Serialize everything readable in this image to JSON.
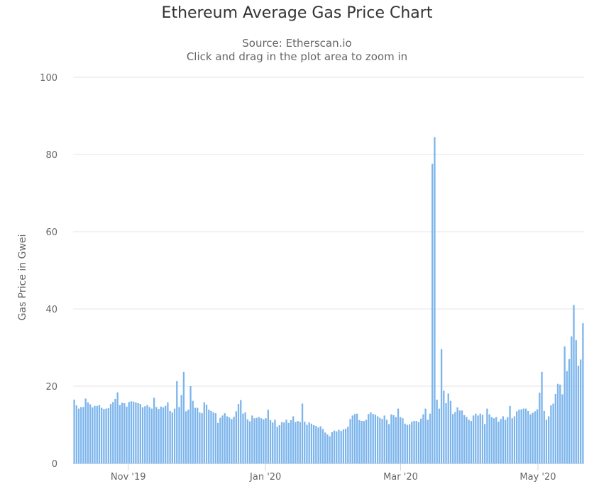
{
  "colors": {
    "bar": "#7cb5ec",
    "grid": "#e6e6e6",
    "axis": "#ccd6eb",
    "text": "#666666",
    "title": "#333333"
  },
  "chart_data": {
    "type": "bar",
    "title": "Ethereum Average Gas Price Chart",
    "subtitle": [
      "Source: Etherscan.io",
      "Click and drag in the plot area to zoom in"
    ],
    "ylabel": "Gas Price in Gwei",
    "xlabel": "",
    "ylim": [
      0,
      100
    ],
    "yticks": [
      0,
      20,
      40,
      60,
      80,
      100
    ],
    "grid": true,
    "legend": "none",
    "x_start": "2019-10-08",
    "x_end": "2020-05-21",
    "xticks": [
      {
        "label": "Nov '19",
        "date": "2019-11-01"
      },
      {
        "label": "Jan '20",
        "date": "2020-01-01"
      },
      {
        "label": "Mar '20",
        "date": "2020-03-01"
      },
      {
        "label": "May '20",
        "date": "2020-05-01"
      }
    ],
    "series": [
      {
        "values": [
          16.5,
          15.0,
          14.2,
          14.6,
          14.6,
          16.8,
          15.8,
          15.3,
          14.5,
          14.9,
          14.9,
          15.1,
          14.4,
          14.1,
          14.2,
          14.3,
          15.4,
          15.9,
          16.7,
          18.4,
          15.1,
          15.7,
          15.6,
          14.7,
          15.9,
          16.1,
          16.0,
          15.8,
          15.6,
          15.4,
          14.5,
          14.8,
          15.1,
          14.6,
          14.2,
          17.0,
          14.6,
          14.1,
          14.7,
          14.5,
          14.9,
          15.8,
          13.6,
          13.2,
          14.2,
          21.3,
          14.6,
          17.7,
          23.7,
          13.5,
          13.9,
          20.0,
          16.2,
          14.4,
          14.4,
          13.2,
          13.0,
          15.8,
          15.2,
          13.9,
          13.6,
          13.2,
          13.0,
          10.5,
          11.8,
          12.4,
          13.0,
          12.2,
          11.9,
          11.5,
          12.1,
          13.5,
          15.4,
          16.4,
          12.9,
          13.2,
          11.4,
          10.9,
          12.4,
          11.7,
          11.8,
          12.0,
          11.7,
          11.4,
          11.7,
          13.9,
          11.2,
          10.6,
          11.3,
          9.5,
          9.9,
          10.7,
          10.6,
          11.3,
          10.5,
          11.2,
          12.2,
          10.7,
          11.0,
          10.7,
          15.5,
          10.8,
          10.0,
          10.6,
          10.3,
          9.9,
          9.7,
          9.3,
          9.6,
          8.9,
          8.0,
          7.5,
          7.0,
          8.1,
          8.5,
          8.3,
          8.7,
          8.4,
          8.8,
          9.0,
          9.5,
          11.5,
          12.4,
          12.8,
          12.9,
          11.2,
          11.0,
          11.0,
          11.3,
          12.8,
          13.2,
          12.8,
          12.6,
          12.2,
          11.8,
          11.5,
          12.4,
          11.3,
          10.2,
          12.7,
          12.5,
          12.0,
          14.2,
          12.0,
          11.7,
          10.3,
          10.0,
          10.1,
          10.8,
          11.0,
          11.0,
          10.7,
          11.6,
          12.7,
          14.2,
          11.3,
          12.9,
          77.6,
          84.5,
          16.5,
          14.2,
          29.6,
          18.8,
          15.6,
          18.1,
          16.2,
          12.8,
          13.3,
          14.5,
          13.7,
          13.7,
          12.5,
          12.0,
          11.3,
          11.0,
          12.4,
          12.9,
          12.4,
          12.9,
          12.6,
          10.2,
          14.2,
          12.7,
          12.0,
          11.7,
          12.0,
          10.8,
          11.5,
          12.2,
          11.3,
          12.0,
          14.9,
          11.7,
          12.2,
          13.5,
          13.9,
          14.0,
          14.2,
          14.2,
          13.6,
          12.7,
          13.1,
          13.5,
          14.0,
          18.3,
          23.7,
          13.6,
          11.3,
          12.2,
          15.0,
          15.5,
          18.0,
          20.6,
          20.4,
          17.9,
          30.3,
          23.9,
          27.0,
          32.9,
          41.0,
          31.9,
          25.3,
          26.9,
          36.3
        ]
      }
    ]
  }
}
